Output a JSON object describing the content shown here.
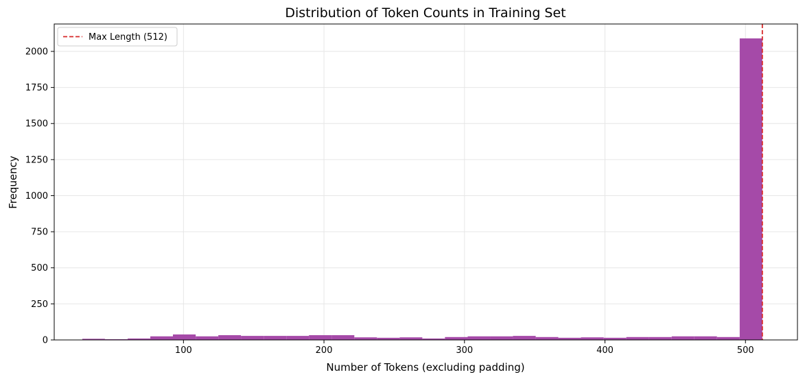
{
  "chart_data": {
    "type": "bar",
    "title": "Distribution of Token Counts in Training Set",
    "xlabel": "Number of Tokens (excluding padding)",
    "ylabel": "Frequency",
    "xlim": [
      8,
      537
    ],
    "ylim": [
      0,
      2190
    ],
    "xticks": [
      100,
      200,
      300,
      400,
      500
    ],
    "yticks": [
      0,
      250,
      500,
      750,
      1000,
      1250,
      1500,
      1750,
      2000
    ],
    "grid": true,
    "bar_color": "#a54aa8",
    "bins": [
      {
        "x0": 28.0,
        "x1": 44.1,
        "count": 8
      },
      {
        "x0": 44.1,
        "x1": 60.3,
        "count": 5
      },
      {
        "x0": 60.3,
        "x1": 76.4,
        "count": 10
      },
      {
        "x0": 76.4,
        "x1": 92.5,
        "count": 25
      },
      {
        "x0": 92.5,
        "x1": 108.7,
        "count": 38
      },
      {
        "x0": 108.7,
        "x1": 124.8,
        "count": 25
      },
      {
        "x0": 124.8,
        "x1": 140.9,
        "count": 33
      },
      {
        "x0": 140.9,
        "x1": 157.1,
        "count": 28
      },
      {
        "x0": 157.1,
        "x1": 173.2,
        "count": 28
      },
      {
        "x0": 173.2,
        "x1": 189.3,
        "count": 28
      },
      {
        "x0": 189.3,
        "x1": 205.5,
        "count": 33
      },
      {
        "x0": 205.5,
        "x1": 221.6,
        "count": 33
      },
      {
        "x0": 221.6,
        "x1": 237.7,
        "count": 18
      },
      {
        "x0": 237.7,
        "x1": 253.9,
        "count": 15
      },
      {
        "x0": 253.9,
        "x1": 270.0,
        "count": 18
      },
      {
        "x0": 270.0,
        "x1": 286.1,
        "count": 10
      },
      {
        "x0": 286.1,
        "x1": 302.3,
        "count": 20
      },
      {
        "x0": 302.3,
        "x1": 318.4,
        "count": 25
      },
      {
        "x0": 318.4,
        "x1": 334.5,
        "count": 25
      },
      {
        "x0": 334.5,
        "x1": 350.7,
        "count": 28
      },
      {
        "x0": 350.7,
        "x1": 366.8,
        "count": 20
      },
      {
        "x0": 366.8,
        "x1": 382.9,
        "count": 15
      },
      {
        "x0": 382.9,
        "x1": 399.1,
        "count": 18
      },
      {
        "x0": 399.1,
        "x1": 415.2,
        "count": 15
      },
      {
        "x0": 415.2,
        "x1": 431.3,
        "count": 20
      },
      {
        "x0": 431.3,
        "x1": 447.5,
        "count": 20
      },
      {
        "x0": 447.5,
        "x1": 463.6,
        "count": 25
      },
      {
        "x0": 463.6,
        "x1": 479.7,
        "count": 25
      },
      {
        "x0": 479.7,
        "x1": 495.9,
        "count": 20
      },
      {
        "x0": 495.9,
        "x1": 512.0,
        "count": 2090
      }
    ],
    "reference_line": {
      "x": 512,
      "label": "Max Length (512)",
      "color": "#d62728",
      "style": "dashed"
    },
    "legend": {
      "position": "top-left",
      "entries": [
        "Max Length (512)"
      ]
    }
  }
}
